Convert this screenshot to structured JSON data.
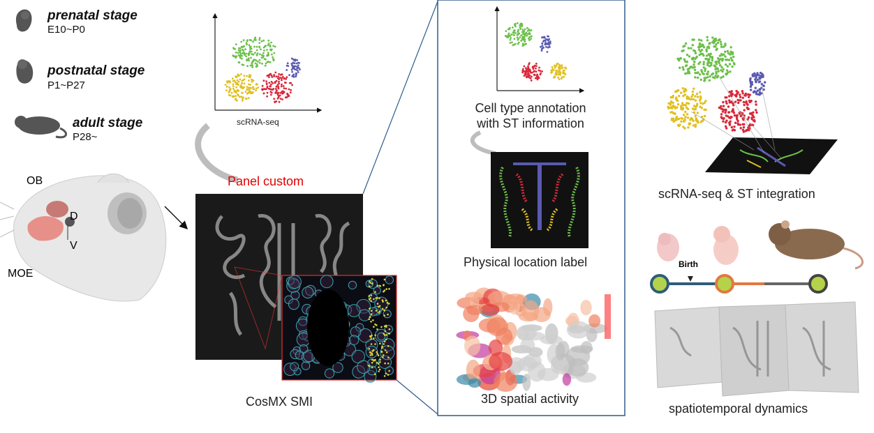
{
  "stages": [
    {
      "title": "prenatal stage",
      "range": "E10~P0"
    },
    {
      "title": "postnatal stage",
      "range": "P1~P27"
    },
    {
      "title": "adult stage",
      "range": "P28~"
    }
  ],
  "anatomy": {
    "ob": "OB",
    "moe": "MOE",
    "dorsal": "D",
    "ventral": "V"
  },
  "panel_custom": "Panel custom",
  "scrna_label": "scRNA-seq",
  "cosmx_label": "CosMX SMI",
  "annotation_line1": "Cell type annotation",
  "annotation_line2": "with ST information",
  "physical_label": "Physical location label",
  "spatial_label": "3D spatial activity",
  "integration_label": "scRNA-seq & ST integration",
  "timeline": {
    "birth": "Birth"
  },
  "dynamics_label": "spatiotemporal dynamics",
  "colors": {
    "green": "#6cbf4a",
    "yellow": "#e0c020",
    "red": "#d8283a",
    "blue": "#5a5ab0",
    "frame": "#2e5c8a",
    "panel_red": "#e00000"
  }
}
